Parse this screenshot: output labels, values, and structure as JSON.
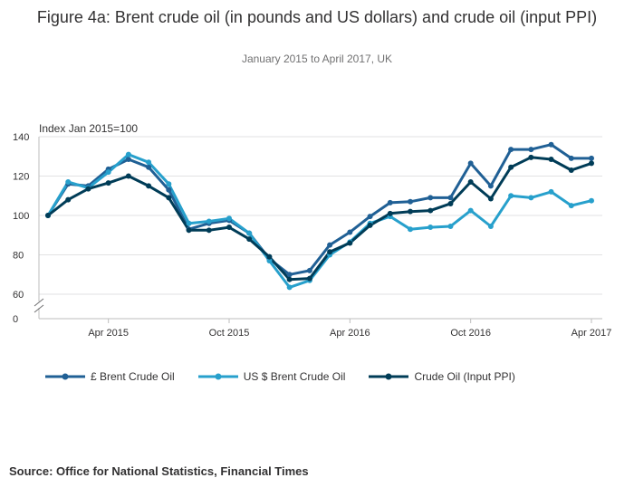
{
  "title": "Figure 4a: Brent crude oil (in pounds and US dollars) and crude oil (input PPI)",
  "subtitle": "January 2015 to April 2017, UK",
  "source": "Source: Office for National Statistics, Financial Times",
  "chart_data": {
    "type": "line",
    "ylabel": "Index Jan 2015=100",
    "ylim": [
      0,
      140
    ],
    "y_broken_axis": true,
    "y_ticks": [
      0,
      60,
      80,
      100,
      120,
      140
    ],
    "grid": true,
    "legend_position": "bottom",
    "x": [
      "Jan 2015",
      "Feb 2015",
      "Mar 2015",
      "Apr 2015",
      "May 2015",
      "Jun 2015",
      "Jul 2015",
      "Aug 2015",
      "Sep 2015",
      "Oct 2015",
      "Nov 2015",
      "Dec 2015",
      "Jan 2016",
      "Feb 2016",
      "Mar 2016",
      "Apr 2016",
      "May 2016",
      "Jun 2016",
      "Jul 2016",
      "Aug 2016",
      "Sep 2016",
      "Oct 2016",
      "Nov 2016",
      "Dec 2016",
      "Jan 2017",
      "Feb 2017",
      "Mar 2017",
      "Apr 2017"
    ],
    "x_tick_labels": [
      "Apr 2015",
      "Oct 2015",
      "Apr 2016",
      "Oct 2016",
      "Apr 2017"
    ],
    "series": [
      {
        "name": "£ Brent Crude Oil",
        "color": "#206095",
        "values": [
          100,
          116,
          115,
          123.5,
          128.5,
          124.5,
          113,
          93,
          96,
          97.5,
          91,
          78,
          70,
          72,
          85,
          91.5,
          99.5,
          106.5,
          107,
          109,
          109,
          126.5,
          115,
          133.5,
          133.5,
          136,
          129,
          129
        ]
      },
      {
        "name": "US $ Brent Crude Oil",
        "color": "#27a0cc",
        "values": [
          100,
          117,
          114,
          122,
          131,
          127,
          116,
          96,
          97,
          98.5,
          91,
          77,
          63.5,
          67,
          80,
          86.5,
          96,
          99.5,
          93,
          94,
          94.5,
          102.5,
          94.5,
          110,
          109,
          112,
          105,
          107.5
        ]
      },
      {
        "name": "Crude Oil (Input PPI)",
        "color": "#003c57",
        "values": [
          100,
          108,
          113.5,
          116.5,
          120,
          115,
          109,
          92.5,
          92.5,
          94,
          88,
          79,
          67.5,
          68,
          81.5,
          86,
          95,
          101,
          102,
          102.5,
          106,
          117,
          108.5,
          124.5,
          129.5,
          128.5,
          123,
          126.5
        ]
      }
    ]
  }
}
